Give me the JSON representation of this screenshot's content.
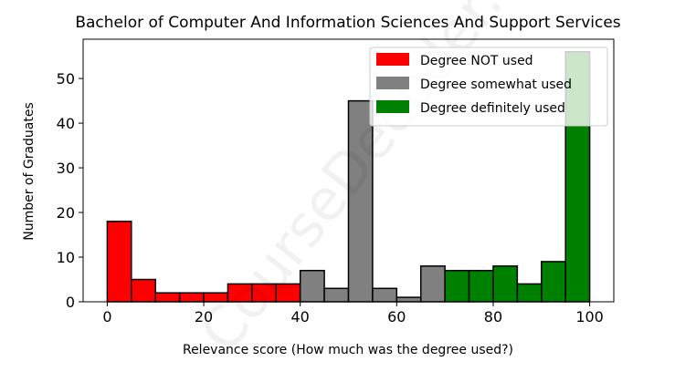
{
  "chart_data": {
    "type": "bar",
    "title": "Bachelor of Computer And Information Sciences And Support Services",
    "xlabel": "Relevance score (How much was the degree used?)",
    "ylabel": "Number of Graduates",
    "xlim": [
      -5,
      105
    ],
    "ylim": [
      0,
      58.8
    ],
    "xticks": [
      0,
      20,
      40,
      60,
      80,
      100
    ],
    "yticks": [
      0,
      10,
      20,
      30,
      40,
      50
    ],
    "bin_width": 5,
    "bins": [
      0,
      5,
      10,
      15,
      20,
      25,
      30,
      35,
      40,
      45,
      50,
      55,
      60,
      65,
      70,
      75,
      80,
      85,
      90,
      95
    ],
    "values": [
      18,
      5,
      2,
      2,
      2,
      4,
      4,
      4,
      7,
      3,
      45,
      3,
      1,
      8,
      7,
      7,
      8,
      4,
      9,
      56
    ],
    "categories_per_bin": [
      0,
      0,
      0,
      0,
      0,
      0,
      0,
      0,
      1,
      1,
      1,
      1,
      1,
      1,
      2,
      2,
      2,
      2,
      2,
      2
    ],
    "series": [
      {
        "name": "Degree NOT used",
        "color": "#ff0000"
      },
      {
        "name": "Degree somewhat used",
        "color": "#808080"
      },
      {
        "name": "Degree definitely used",
        "color": "#008000"
      }
    ],
    "legend_position": "top-right",
    "grid": false,
    "watermark": "CourseDecoder.com"
  }
}
